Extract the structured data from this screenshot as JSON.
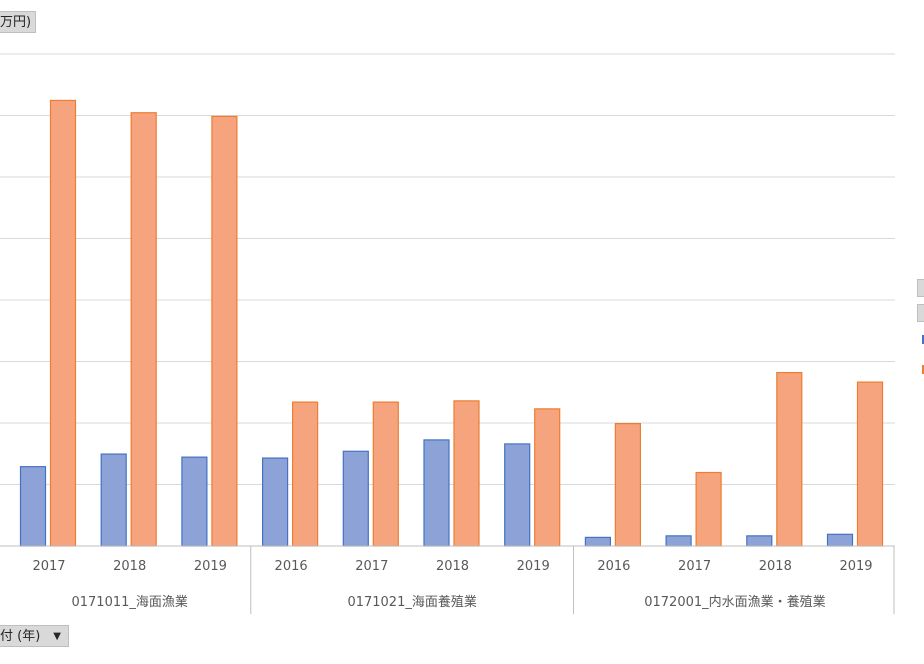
{
  "controls": {
    "unit_label": "万円)",
    "date_field_label": "付 (年)",
    "date_field_caret": "▼"
  },
  "legend": {
    "item_labels": [
      "",
      ""
    ],
    "colors": [
      "#8da3d8",
      "#f6a47e"
    ]
  },
  "chart_data": {
    "type": "bar",
    "series": [
      {
        "name": "",
        "color": "#8da3d8",
        "stroke": "#4472c4",
        "values": [
          1290,
          1495,
          1445,
          1430,
          1540,
          1725,
          1660,
          140,
          165,
          165,
          190
        ]
      },
      {
        "name": "",
        "color": "#f6a47e",
        "stroke": "#ed7d31",
        "values": [
          7245,
          7045,
          6985,
          2340,
          2340,
          2360,
          2230,
          1990,
          1195,
          2820,
          2665
        ]
      }
    ],
    "groups": [
      {
        "label": "0171011_海面漁業",
        "years": [
          "2017",
          "2018",
          "2019"
        ]
      },
      {
        "label": "0171021_海面養殖業",
        "years": [
          "2016",
          "2017",
          "2018",
          "2019"
        ]
      },
      {
        "label": "0172001_内水面漁業・養殖業",
        "years": [
          "2016",
          "2017",
          "2018",
          "2019"
        ]
      }
    ],
    "ylim": [
      0,
      8000
    ],
    "grid": true,
    "title": "",
    "xlabel": "",
    "ylabel": ""
  }
}
